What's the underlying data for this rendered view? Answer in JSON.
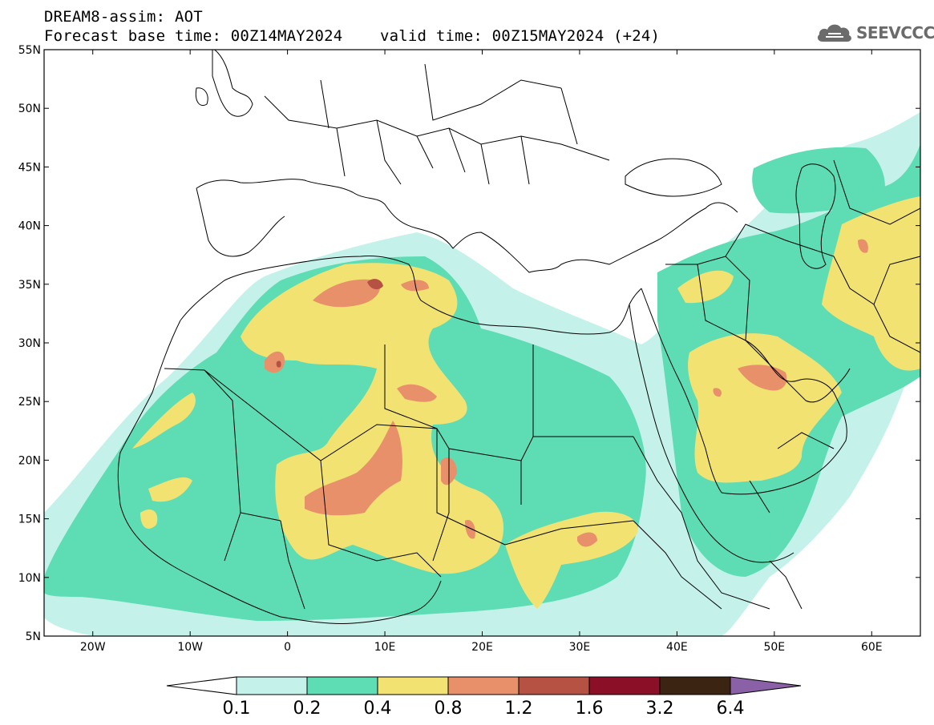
{
  "header": {
    "line1": "DREAM8-assim: AOT",
    "line2": "Forecast base time: 00Z14MAY2024    valid time: 00Z15MAY2024 (+24)"
  },
  "logo": {
    "text": "SEEVCCC",
    "icon": "cloud-icon"
  },
  "map": {
    "lon_range": [
      -25,
      65
    ],
    "lat_range": [
      5,
      55
    ],
    "lat_ticks": [
      "5N",
      "10N",
      "15N",
      "20N",
      "25N",
      "30N",
      "35N",
      "40N",
      "45N",
      "50N",
      "55N"
    ],
    "lon_ticks": [
      "20W",
      "10W",
      "0",
      "10E",
      "20E",
      "30E",
      "40E",
      "50E",
      "60E"
    ]
  },
  "colorbar": {
    "labels": [
      "0.1",
      "0.2",
      "0.4",
      "0.8",
      "1.2",
      "1.6",
      "3.2",
      "6.4"
    ],
    "colors": [
      "#c4f2eb",
      "#5edcb4",
      "#f2e272",
      "#e8906a",
      "#b65244",
      "#8b0f26",
      "#3b2412",
      "#8a60a6"
    ],
    "end_colors": {
      "low": "#ffffff",
      "high": "#8a60a6"
    }
  }
}
